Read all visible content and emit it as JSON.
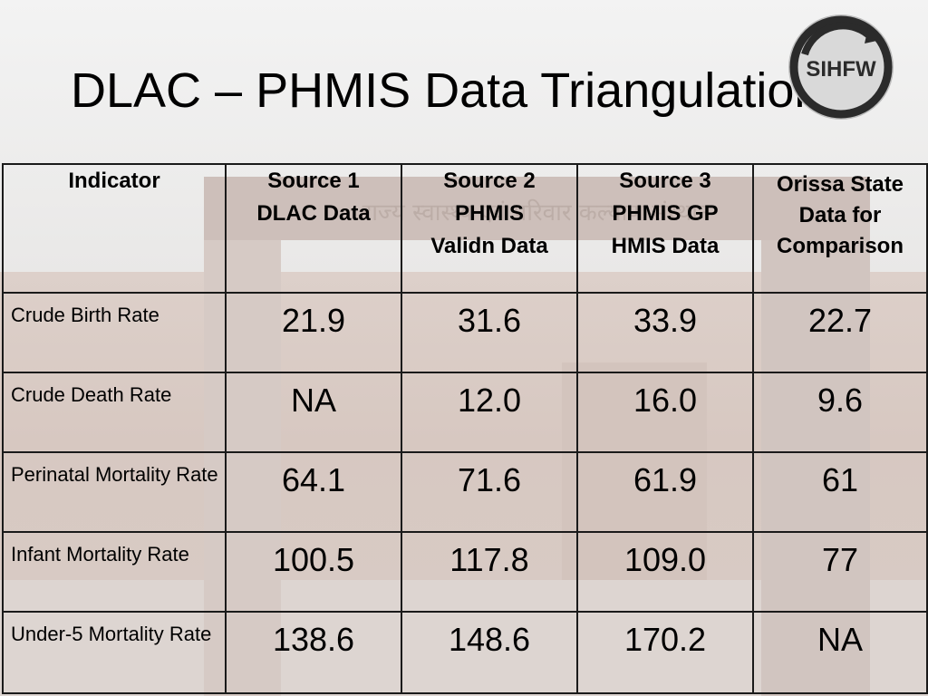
{
  "slide": {
    "title": "DLAC – PHMIS Data Triangulation",
    "logo_text": "SIHFW",
    "background_sign_text": "राज्य स्वास्थ्य एवं परिवार कल्याण संस्थान"
  },
  "table": {
    "headers": [
      {
        "lines": [
          "Indicator"
        ]
      },
      {
        "lines": [
          "Source 1",
          "DLAC Data"
        ]
      },
      {
        "lines": [
          "Source 2",
          "PHMIS",
          "Validn Data"
        ]
      },
      {
        "lines": [
          "Source 3",
          "PHMIS GP",
          "HMIS Data"
        ]
      },
      {
        "lines": [
          "Orissa State",
          "Data for",
          "Comparison"
        ]
      }
    ],
    "rows": [
      {
        "indicator": "Crude Birth Rate",
        "values": [
          "21.9",
          "31.6",
          "33.9",
          "22.7"
        ]
      },
      {
        "indicator": "Crude Death Rate",
        "values": [
          "NA",
          "12.0",
          "16.0",
          "9.6"
        ]
      },
      {
        "indicator": "Perinatal Mortality Rate",
        "values": [
          "64.1",
          "71.6",
          "61.9",
          "61"
        ]
      },
      {
        "indicator": "Infant Mortality Rate",
        "values": [
          "100.5",
          "117.8",
          "109.0",
          "77"
        ]
      },
      {
        "indicator": "Under-5 Mortality Rate",
        "values": [
          "138.6",
          "148.6",
          "170.2",
          "NA"
        ]
      }
    ]
  },
  "colors": {
    "border": "#1a1a1a",
    "logo_ring": "#2b2b2b",
    "logo_fill": "#cfcfcf"
  }
}
